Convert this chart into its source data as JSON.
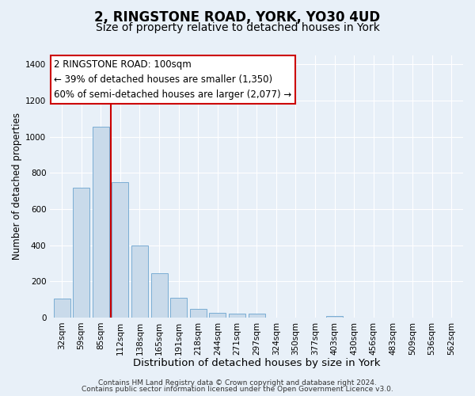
{
  "title": "2, RINGSTONE ROAD, YORK, YO30 4UD",
  "subtitle": "Size of property relative to detached houses in York",
  "xlabel": "Distribution of detached houses by size in York",
  "ylabel": "Number of detached properties",
  "bar_labels": [
    "32sqm",
    "59sqm",
    "85sqm",
    "112sqm",
    "138sqm",
    "165sqm",
    "191sqm",
    "218sqm",
    "244sqm",
    "271sqm",
    "297sqm",
    "324sqm",
    "350sqm",
    "377sqm",
    "403sqm",
    "430sqm",
    "456sqm",
    "483sqm",
    "509sqm",
    "536sqm",
    "562sqm"
  ],
  "bar_values": [
    105,
    720,
    1055,
    750,
    400,
    245,
    110,
    48,
    27,
    22,
    20,
    0,
    0,
    0,
    10,
    0,
    0,
    0,
    0,
    0,
    0
  ],
  "bar_color": "#c9daea",
  "bar_edge_color": "#7aadd4",
  "background_color": "#e8f0f8",
  "grid_color": "#ffffff",
  "annotation_line1": "2 RINGSTONE ROAD: 100sqm",
  "annotation_line2": "← 39% of detached houses are smaller (1,350)",
  "annotation_line3": "60% of semi-detached houses are larger (2,077) →",
  "annotation_box_color": "#ffffff",
  "annotation_box_edge_color": "#cc0000",
  "vline_color": "#cc0000",
  "ylim": [
    0,
    1450
  ],
  "yticks": [
    0,
    200,
    400,
    600,
    800,
    1000,
    1200,
    1400
  ],
  "footer_line1": "Contains HM Land Registry data © Crown copyright and database right 2024.",
  "footer_line2": "Contains public sector information licensed under the Open Government Licence v3.0.",
  "title_fontsize": 12,
  "subtitle_fontsize": 10,
  "xlabel_fontsize": 9.5,
  "ylabel_fontsize": 8.5,
  "tick_fontsize": 7.5,
  "annotation_fontsize": 8.5,
  "footer_fontsize": 6.5
}
